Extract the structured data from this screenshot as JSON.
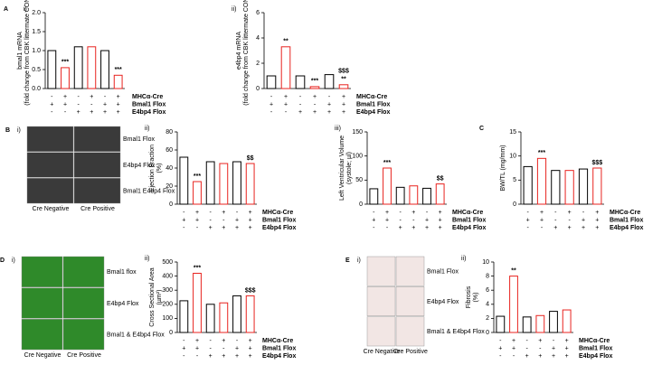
{
  "chart_data": [
    {
      "type": "bar",
      "panel": "A",
      "sub": "i)",
      "ylabel": [
        "bmal1 mRNA",
        "(fold change from CBK littermate CON)"
      ],
      "values": [
        1.0,
        0.55,
        1.1,
        1.1,
        1.0,
        0.35
      ],
      "colors": [
        "#000000",
        "#e8231f",
        "#000000",
        "#e8231f",
        "#000000",
        "#e8231f"
      ],
      "ylim": [
        0,
        2
      ],
      "yticks": [
        {
          "value": 0,
          "label": "0.0"
        },
        0.5,
        {
          "value": 1,
          "label": "1.0"
        },
        1.5,
        {
          "value": 2,
          "label": "2.0"
        }
      ],
      "annotations": [
        {
          "bar": 1,
          "text": "***",
          "color": "#000000"
        },
        {
          "bar": 5,
          "text": "***",
          "color": "#000000"
        }
      ],
      "genotype": [
        {
          "name": "MHCα-Cre",
          "signs": [
            "-",
            "+",
            "-",
            "+",
            "-",
            "+"
          ]
        },
        {
          "name": "Bmal1 Flox",
          "signs": [
            "+",
            "+",
            "-",
            "-",
            "+",
            "+"
          ]
        },
        {
          "name": "E4bp4 Flox",
          "signs": [
            "-",
            "-",
            "+",
            "+",
            "+",
            "+"
          ]
        }
      ]
    },
    {
      "type": "bar",
      "sub": "ii)",
      "ylabel": [
        "e4bp4 mRNA",
        "(fold change from CBK littermate CON)"
      ],
      "values": [
        1.0,
        3.3,
        1.0,
        0.15,
        1.1,
        0.3
      ],
      "colors": [
        "#000000",
        "#e8231f",
        "#000000",
        "#e8231f",
        "#000000",
        "#e8231f"
      ],
      "ylim": [
        0,
        6
      ],
      "yticks": [
        0,
        2,
        4,
        6
      ],
      "annotations": [
        {
          "bar": 1,
          "text": "**",
          "color": "#1a2a6c"
        },
        {
          "bar": 3,
          "text": "***",
          "color": "#000000"
        },
        {
          "bar": 5,
          "text": "**",
          "color": "#000000"
        },
        {
          "bar": 5,
          "text": "$$$",
          "color": "#000000"
        }
      ],
      "genotype": [
        {
          "name": "MHCα-Cre",
          "signs": [
            "-",
            "+",
            "-",
            "+",
            "-",
            "+"
          ]
        },
        {
          "name": "Bmal1 Flox",
          "signs": [
            "+",
            "+",
            "-",
            "-",
            "+",
            "+"
          ]
        },
        {
          "name": "E4bp4 Flox",
          "signs": [
            "-",
            "-",
            "+",
            "+",
            "+",
            "+"
          ]
        }
      ]
    },
    {
      "type": "bar",
      "sub": "ii)",
      "ylabel": [
        "Ejection Fraction",
        "(%)"
      ],
      "values": [
        52,
        25,
        47,
        45,
        47,
        45
      ],
      "colors": [
        "#000000",
        "#e8231f",
        "#000000",
        "#e8231f",
        "#000000",
        "#e8231f"
      ],
      "ylim": [
        0,
        80
      ],
      "yticks": [
        0,
        20,
        40,
        60,
        80
      ],
      "annotations": [
        {
          "bar": 1,
          "text": "***",
          "color": "#000000"
        },
        {
          "bar": 5,
          "text": "$$",
          "color": "#000000"
        }
      ],
      "genotype": [
        {
          "name": "MHCα-Cre",
          "signs": [
            "-",
            "+",
            "-",
            "+",
            "-",
            "+"
          ]
        },
        {
          "name": "Bmal1 Flox",
          "signs": [
            "+",
            "+",
            "-",
            "-",
            "+",
            "+"
          ]
        },
        {
          "name": "E4bp4 Flox",
          "signs": [
            "-",
            "-",
            "+",
            "+",
            "+",
            "+"
          ]
        }
      ]
    },
    {
      "type": "bar",
      "sub": "iii)",
      "ylabel": [
        "Left Ventricular Volume",
        "(systole; µl)"
      ],
      "values": [
        32,
        75,
        35,
        38,
        33,
        42
      ],
      "colors": [
        "#000000",
        "#e8231f",
        "#000000",
        "#e8231f",
        "#000000",
        "#e8231f"
      ],
      "ylim": [
        0,
        150
      ],
      "yticks": [
        0,
        50,
        100,
        150
      ],
      "annotations": [
        {
          "bar": 1,
          "text": "***",
          "color": "#000000"
        },
        {
          "bar": 5,
          "text": "$$",
          "color": "#000000"
        }
      ],
      "genotype": [
        {
          "name": "MHCα-Cre",
          "signs": [
            "-",
            "+",
            "-",
            "+",
            "-",
            "+"
          ]
        },
        {
          "name": "Bmal1 Flox",
          "signs": [
            "+",
            "+",
            "-",
            "-",
            "+",
            "+"
          ]
        },
        {
          "name": "E4bp4 Flox",
          "signs": [
            "-",
            "-",
            "+",
            "+",
            "+",
            "+"
          ]
        }
      ]
    },
    {
      "type": "bar",
      "panel": "C",
      "ylabel": [
        "BW/TL (mg/mm)"
      ],
      "values": [
        7.8,
        9.5,
        7.0,
        7.0,
        7.3,
        7.5
      ],
      "colors": [
        "#000000",
        "#e8231f",
        "#000000",
        "#e8231f",
        "#000000",
        "#e8231f"
      ],
      "ylim": [
        0,
        15
      ],
      "yticks": [
        0,
        5,
        10,
        15
      ],
      "annotations": [
        {
          "bar": 1,
          "text": "***",
          "color": "#000000"
        },
        {
          "bar": 5,
          "text": "$$$",
          "color": "#000000"
        }
      ],
      "genotype": [
        {
          "name": "MHCα-Cre",
          "signs": [
            "-",
            "+",
            "-",
            "+",
            "-",
            "+"
          ]
        },
        {
          "name": "Bmal1 Flox",
          "signs": [
            "+",
            "+",
            "-",
            "-",
            "+",
            "+"
          ]
        },
        {
          "name": "E4bp4 Flox",
          "signs": [
            "-",
            "-",
            "+",
            "+",
            "+",
            "+"
          ]
        }
      ]
    },
    {
      "type": "bar",
      "sub": "ii)",
      "ylabel": [
        "Cross Sectional Area",
        "(µm²)"
      ],
      "values": [
        225,
        420,
        200,
        210,
        260,
        260
      ],
      "colors": [
        "#000000",
        "#e8231f",
        "#000000",
        "#e8231f",
        "#000000",
        "#e8231f"
      ],
      "ylim": [
        0,
        500
      ],
      "yticks": [
        0,
        100,
        200,
        300,
        400,
        500
      ],
      "annotations": [
        {
          "bar": 1,
          "text": "***",
          "color": "#000000"
        },
        {
          "bar": 5,
          "text": "$$$",
          "color": "#000000"
        }
      ],
      "genotype": [
        {
          "name": "MHCα-Cre",
          "signs": [
            "-",
            "+",
            "-",
            "+",
            "-",
            "+"
          ]
        },
        {
          "name": "Bmal1 Flox",
          "signs": [
            "+",
            "+",
            "-",
            "-",
            "+",
            "+"
          ]
        },
        {
          "name": "E4bp4 Flox",
          "signs": [
            "-",
            "-",
            "+",
            "+",
            "+",
            "+"
          ]
        }
      ]
    },
    {
      "type": "bar",
      "sub": "ii)",
      "ylabel": [
        "Fibrosis",
        "(%)"
      ],
      "values": [
        2.3,
        8.0,
        2.2,
        2.4,
        3.0,
        3.2
      ],
      "colors": [
        "#000000",
        "#e8231f",
        "#000000",
        "#e8231f",
        "#000000",
        "#e8231f"
      ],
      "ylim": [
        0,
        10
      ],
      "yticks": [
        0,
        2,
        4,
        6,
        8,
        10
      ],
      "annotations": [
        {
          "bar": 1,
          "text": "**",
          "color": "#000000"
        }
      ],
      "genotype": [
        {
          "name": "MHCα-Cre",
          "signs": [
            "-",
            "+",
            "-",
            "+",
            "-",
            "+"
          ]
        },
        {
          "name": "Bmal1 Flox",
          "signs": [
            "+",
            "+",
            "-",
            "-",
            "+",
            "+"
          ]
        },
        {
          "name": "E4bp4 Flox",
          "signs": [
            "-",
            "-",
            "+",
            "+",
            "+",
            "+"
          ]
        }
      ]
    }
  ],
  "images": [
    {
      "panel": "B",
      "sub": "i)",
      "color": "#3a3a3a",
      "rows": [
        "Bmal1 Flox",
        "E4bp4 Flox",
        "Bmal1 E4bp4 Flox"
      ],
      "columns": [
        "Cre Negative",
        "Cre Positive"
      ]
    },
    {
      "panel": "D",
      "sub": "i)",
      "color": "#2f8a2a",
      "rows": [
        "Bmal1 flox",
        "E4bp4 Flox",
        "Bmal1 & E4bp4 Flox"
      ],
      "columns": [
        "Cre Negative",
        "Cre Positive"
      ]
    },
    {
      "panel": "E",
      "sub": "i)",
      "color": "#f2e6e4",
      "rows": [
        "Bmal1 Flox",
        "E4bp4 Flox",
        "Bmal1 & E4bp4 Flox"
      ],
      "columns": [
        "Cre Negative",
        "Cre Positive"
      ]
    }
  ]
}
